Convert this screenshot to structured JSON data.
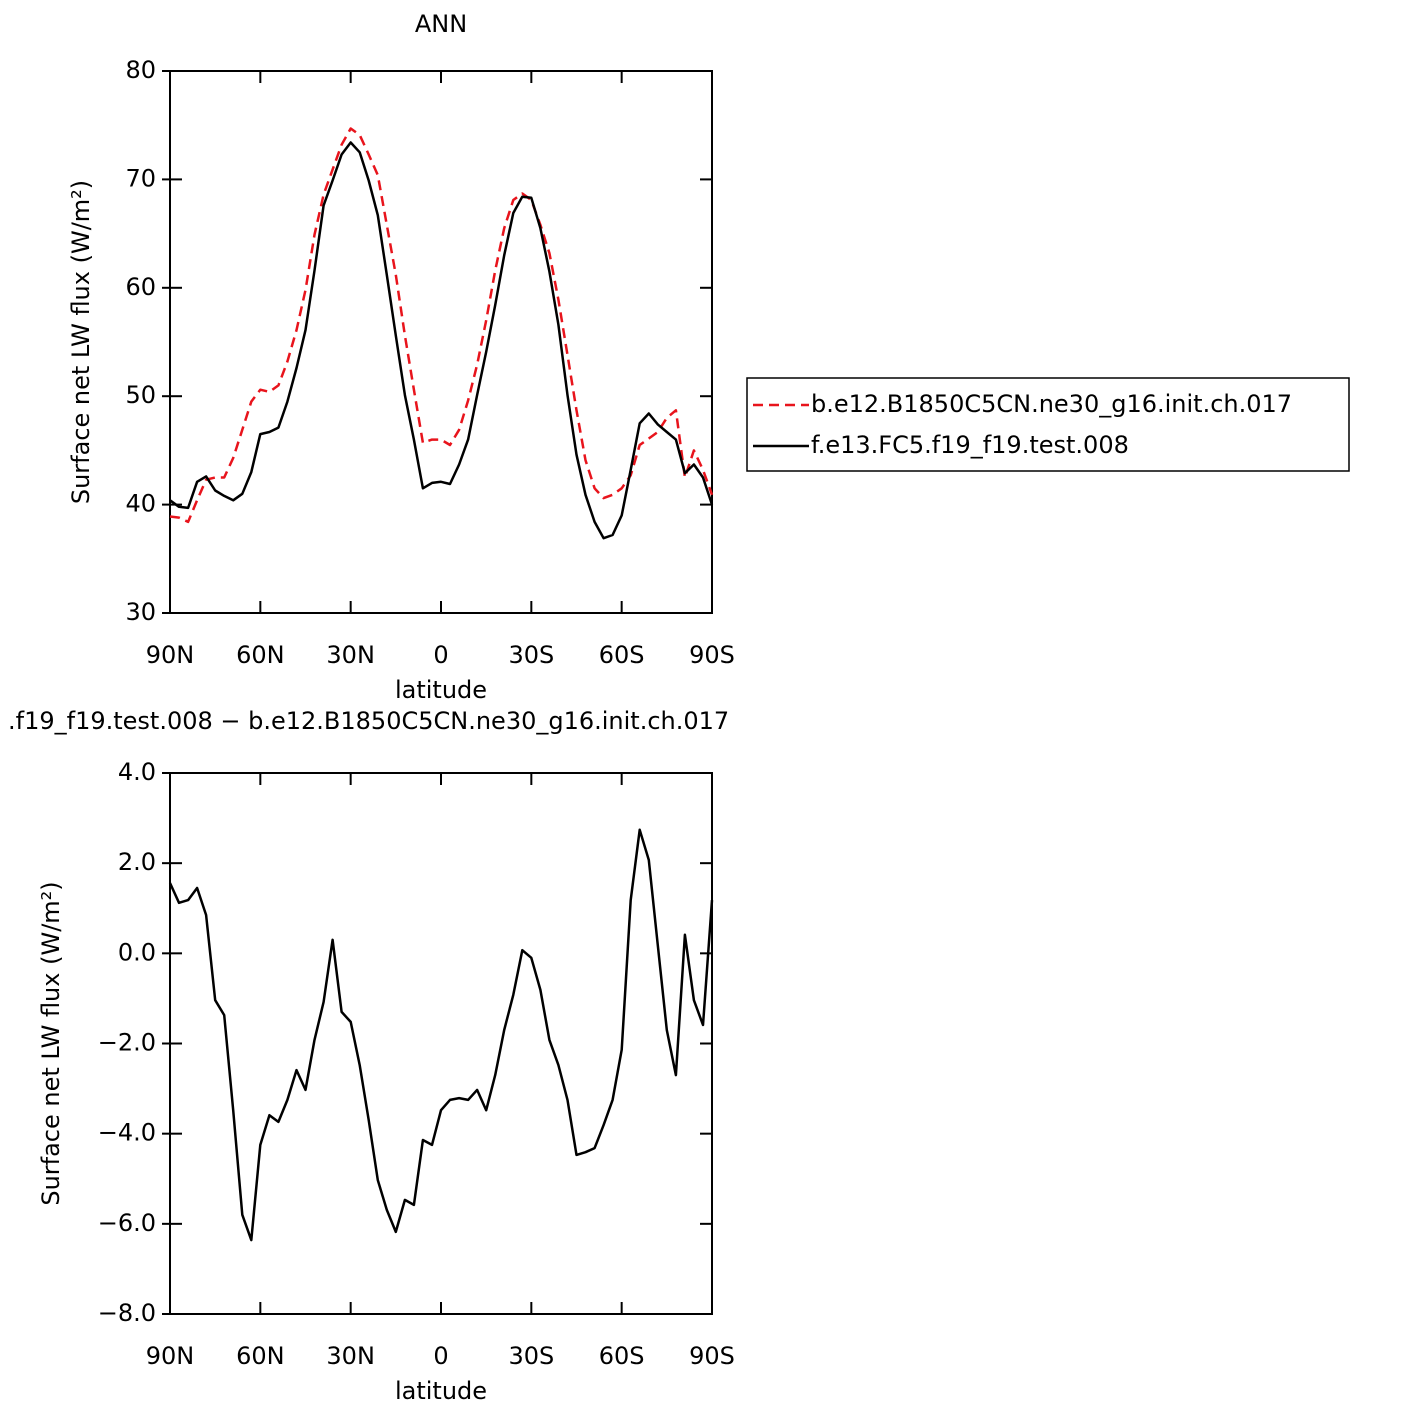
{
  "chart_data": [
    {
      "type": "line",
      "title": "ANN",
      "xlabel": "latitude",
      "ylabel": "Surface net LW flux (W/m²)",
      "x": [
        90,
        87,
        84,
        81,
        78,
        75,
        72,
        69,
        66,
        63,
        60,
        57,
        54,
        51,
        48,
        45,
        42,
        39,
        36,
        33,
        30,
        27,
        24,
        21,
        18,
        15,
        12,
        9,
        6,
        3,
        0,
        -3,
        -6,
        -9,
        -12,
        -15,
        -18,
        -21,
        -24,
        -27,
        -30,
        -33,
        -36,
        -39,
        -42,
        -45,
        -48,
        -51,
        -54,
        -57,
        -60,
        -63,
        -66,
        -69,
        -72,
        -75,
        -78,
        -81,
        -84,
        -87,
        -90
      ],
      "series": [
        {
          "name": "b.e12.B1850C5CN.ne30_g16.init.ch.017",
          "color": "#e8141c",
          "linestyle": "dashed",
          "values": [
            38.9,
            38.8,
            38.4,
            40.4,
            42.3,
            42.5,
            42.5,
            44.3,
            46.9,
            49.5,
            50.6,
            50.4,
            51.0,
            53.2,
            56.1,
            59.8,
            64.9,
            68.6,
            70.9,
            73.2,
            74.7,
            74.1,
            72.3,
            70.4,
            65.8,
            61.2,
            55.6,
            50.6,
            45.7,
            46.0,
            46.0,
            45.5,
            46.9,
            49.6,
            52.9,
            57.0,
            61.6,
            65.5,
            68.1,
            68.7,
            68.1,
            65.8,
            63.2,
            58.9,
            53.8,
            48.7,
            44.1,
            41.5,
            40.6,
            40.9,
            41.5,
            42.7,
            45.5,
            46.1,
            46.7,
            48.0,
            48.7,
            42.5,
            45.0,
            43.2,
            40.9
          ]
        },
        {
          "name": "f.e13.FC5.f19_f19.test.008",
          "color": "#000000",
          "linestyle": "solid",
          "values": [
            40.4,
            39.8,
            39.7,
            42.1,
            42.6,
            41.3,
            40.8,
            40.4,
            41.0,
            43.0,
            46.5,
            46.7,
            47.1,
            49.5,
            52.6,
            56.1,
            61.6,
            67.6,
            69.9,
            72.3,
            73.4,
            72.5,
            69.9,
            66.7,
            61.2,
            55.6,
            50.1,
            46.0,
            41.5,
            42.0,
            42.1,
            41.9,
            43.7,
            46.0,
            50.1,
            54.1,
            58.4,
            63.0,
            66.9,
            68.4,
            68.3,
            65.5,
            61.5,
            56.6,
            50.1,
            44.6,
            40.9,
            38.4,
            36.9,
            37.2,
            39.0,
            43.2,
            47.5,
            48.4,
            47.4,
            46.7,
            46.0,
            42.9,
            43.7,
            42.5,
            40.0
          ]
        }
      ],
      "xlim": [
        90,
        -90
      ],
      "xticks": [
        {
          "value": 90,
          "label": "90N"
        },
        {
          "value": 60,
          "label": "60N"
        },
        {
          "value": 30,
          "label": "30N"
        },
        0,
        {
          "value": -30,
          "label": "30S"
        },
        {
          "value": -60,
          "label": "60S"
        },
        {
          "value": -90,
          "label": "90S"
        }
      ],
      "ylim": [
        30,
        80
      ],
      "yticks": [
        30,
        40,
        50,
        60,
        70,
        80
      ],
      "legend": "right"
    },
    {
      "type": "line",
      "title": ".f19_f19.test.008 − b.e12.B1850C5CN.ne30_g16.init.ch.017",
      "xlabel": "latitude",
      "ylabel": "Surface net LW flux (W/m²)",
      "x": [
        90,
        87,
        84,
        81,
        78,
        75,
        72,
        69,
        66,
        63,
        60,
        57,
        54,
        51,
        48,
        45,
        42,
        39,
        36,
        33,
        30,
        27,
        24,
        21,
        18,
        15,
        12,
        9,
        6,
        3,
        0,
        -3,
        -6,
        -9,
        -12,
        -15,
        -18,
        -21,
        -24,
        -27,
        -30,
        -33,
        -36,
        -39,
        -42,
        -45,
        -48,
        -51,
        -54,
        -57,
        -60,
        -63,
        -66,
        -69,
        -72,
        -75,
        -78,
        -81,
        -84,
        -87,
        -90
      ],
      "series": [
        {
          "color": "#000000",
          "linestyle": "solid",
          "values": [
            1.56,
            1.12,
            1.18,
            1.45,
            0.85,
            -1.04,
            -1.37,
            -3.48,
            -5.8,
            -6.36,
            -4.25,
            -3.59,
            -3.74,
            -3.25,
            -2.59,
            -3.03,
            -1.92,
            -1.08,
            0.3,
            -1.3,
            -1.52,
            -2.48,
            -3.7,
            -5.03,
            -5.69,
            -6.18,
            -5.47,
            -5.58,
            -4.14,
            -4.25,
            -3.48,
            -3.25,
            -3.21,
            -3.25,
            -3.03,
            -3.48,
            -2.7,
            -1.7,
            -0.92,
            0.07,
            -0.1,
            -0.81,
            -1.92,
            -2.48,
            -3.25,
            -4.47,
            -4.41,
            -4.32,
            -3.81,
            -3.25,
            -2.14,
            1.18,
            2.74,
            2.07,
            0.18,
            -1.7,
            -2.7,
            0.41,
            -1.04,
            -1.59,
            1.18
          ]
        }
      ],
      "xlim": [
        90,
        -90
      ],
      "xticks": [
        {
          "value": 90,
          "label": "90N"
        },
        {
          "value": 60,
          "label": "60N"
        },
        {
          "value": 30,
          "label": "30N"
        },
        0,
        {
          "value": -30,
          "label": "30S"
        },
        {
          "value": -60,
          "label": "60S"
        },
        {
          "value": -90,
          "label": "90S"
        }
      ],
      "ylim": [
        -8,
        4
      ],
      "yticks": [
        {
          "value": -8,
          "label": "−8.0"
        },
        {
          "value": -6,
          "label": "−6.0"
        },
        {
          "value": -4,
          "label": "−4.0"
        },
        {
          "value": -2,
          "label": "−2.0"
        },
        {
          "value": 0,
          "label": "0.0"
        },
        {
          "value": 2,
          "label": "2.0"
        },
        {
          "value": 4,
          "label": "4.0"
        }
      ]
    }
  ]
}
